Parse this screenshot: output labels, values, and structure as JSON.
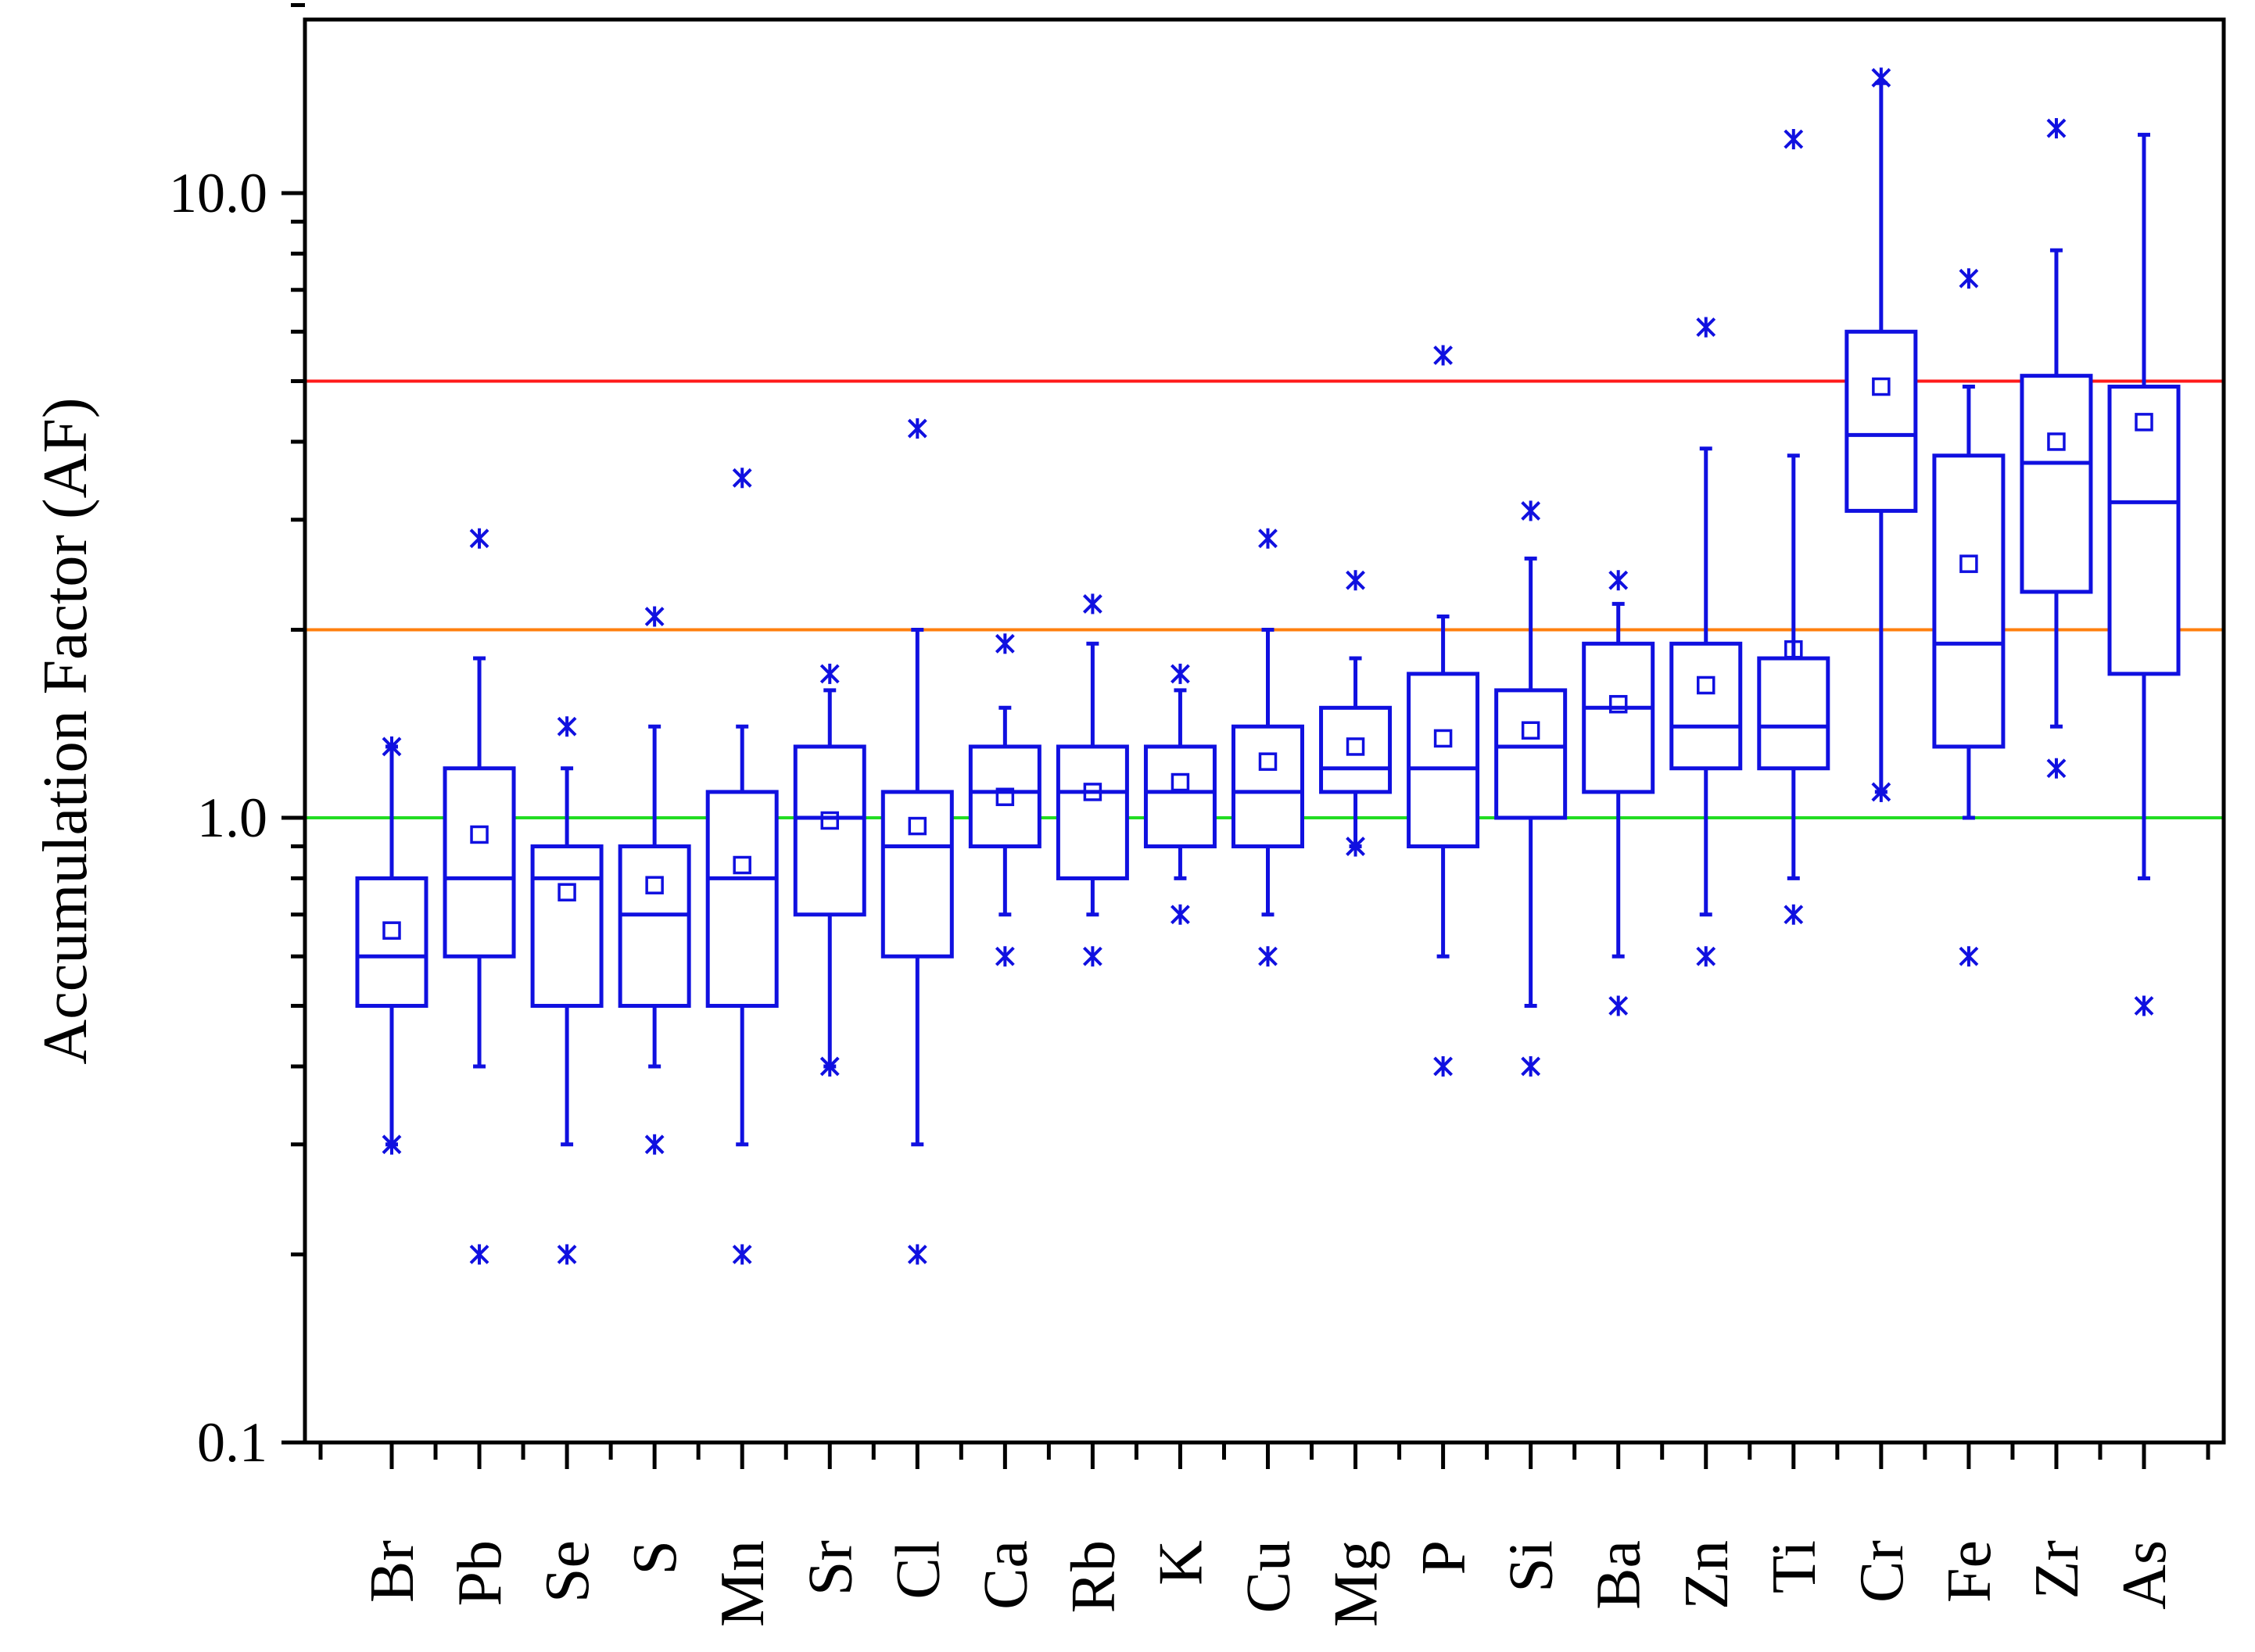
{
  "chart_data": {
    "type": "box",
    "title": "",
    "xlabel": "",
    "ylabel": "Accumulation Factor (AF)",
    "yscale": "log",
    "ylim": [
      0.1,
      20
    ],
    "yticks": [
      0.1,
      1.0,
      10.0
    ],
    "ytick_labels": [
      "0.1",
      "1.0",
      "10.0"
    ],
    "grid": false,
    "box_color": "#1010e0",
    "reference_lines": [
      {
        "value": 1,
        "color": "#22dd22"
      },
      {
        "value": 2,
        "color": "#ff7f0e"
      },
      {
        "value": 5,
        "color": "#ff1a1a"
      }
    ],
    "categories": [
      "Br",
      "Pb",
      "Se",
      "S",
      "Mn",
      "Sr",
      "Cl",
      "Ca",
      "Rb",
      "K",
      "Cu",
      "Mg",
      "P",
      "Si",
      "Ba",
      "Zn",
      "Ti",
      "Cr",
      "Fe",
      "Zr",
      "As"
    ],
    "boxes": [
      {
        "label": "Br",
        "whisker_low": 0.3,
        "q1": 0.5,
        "median": 0.6,
        "q3": 0.8,
        "whisker_high": 1.3,
        "mean": 0.66,
        "outliers": [
          0.3,
          1.3
        ]
      },
      {
        "label": "Pb",
        "whisker_low": 0.4,
        "q1": 0.6,
        "median": 0.8,
        "q3": 1.2,
        "whisker_high": 1.8,
        "mean": 0.94,
        "outliers": [
          0.2,
          2.8
        ]
      },
      {
        "label": "Se",
        "whisker_low": 0.3,
        "q1": 0.5,
        "median": 0.8,
        "q3": 0.9,
        "whisker_high": 1.2,
        "mean": 0.76,
        "outliers": [
          0.2,
          1.4
        ]
      },
      {
        "label": "S",
        "whisker_low": 0.4,
        "q1": 0.5,
        "median": 0.7,
        "q3": 0.9,
        "whisker_high": 1.4,
        "mean": 0.78,
        "outliers": [
          0.3,
          2.1
        ]
      },
      {
        "label": "Mn",
        "whisker_low": 0.3,
        "q1": 0.5,
        "median": 0.8,
        "q3": 1.1,
        "whisker_high": 1.4,
        "mean": 0.84,
        "outliers": [
          0.2,
          3.5
        ]
      },
      {
        "label": "Sr",
        "whisker_low": 0.4,
        "q1": 0.7,
        "median": 1.0,
        "q3": 1.3,
        "whisker_high": 1.6,
        "mean": 0.99,
        "outliers": [
          0.4,
          1.7
        ]
      },
      {
        "label": "Cl",
        "whisker_low": 0.3,
        "q1": 0.6,
        "median": 0.9,
        "q3": 1.1,
        "whisker_high": 2.0,
        "mean": 0.97,
        "outliers": [
          0.2,
          4.2
        ]
      },
      {
        "label": "Ca",
        "whisker_low": 0.7,
        "q1": 0.9,
        "median": 1.1,
        "q3": 1.3,
        "whisker_high": 1.5,
        "mean": 1.08,
        "outliers": [
          0.6,
          1.9
        ]
      },
      {
        "label": "Rb",
        "whisker_low": 0.7,
        "q1": 0.8,
        "median": 1.1,
        "q3": 1.3,
        "whisker_high": 1.9,
        "mean": 1.1,
        "outliers": [
          0.6,
          2.2
        ]
      },
      {
        "label": "K",
        "whisker_low": 0.8,
        "q1": 0.9,
        "median": 1.1,
        "q3": 1.3,
        "whisker_high": 1.6,
        "mean": 1.14,
        "outliers": [
          0.7,
          1.7
        ]
      },
      {
        "label": "Cu",
        "whisker_low": 0.7,
        "q1": 0.9,
        "median": 1.1,
        "q3": 1.4,
        "whisker_high": 2.0,
        "mean": 1.23,
        "outliers": [
          0.6,
          2.8
        ]
      },
      {
        "label": "Mg",
        "whisker_low": 0.9,
        "q1": 1.1,
        "median": 1.2,
        "q3": 1.5,
        "whisker_high": 1.8,
        "mean": 1.3,
        "outliers": [
          0.9,
          2.4
        ]
      },
      {
        "label": "P",
        "whisker_low": 0.6,
        "q1": 0.9,
        "median": 1.2,
        "q3": 1.7,
        "whisker_high": 2.1,
        "mean": 1.34,
        "outliers": [
          0.4,
          5.5
        ]
      },
      {
        "label": "Si",
        "whisker_low": 0.5,
        "q1": 1.0,
        "median": 1.3,
        "q3": 1.6,
        "whisker_high": 2.6,
        "mean": 1.38,
        "outliers": [
          0.4,
          3.1
        ]
      },
      {
        "label": "Ba",
        "whisker_low": 0.6,
        "q1": 1.1,
        "median": 1.5,
        "q3": 1.9,
        "whisker_high": 2.2,
        "mean": 1.52,
        "outliers": [
          0.5,
          2.4
        ]
      },
      {
        "label": "Zn",
        "whisker_low": 0.7,
        "q1": 1.2,
        "median": 1.4,
        "q3": 1.9,
        "whisker_high": 3.9,
        "mean": 1.63,
        "outliers": [
          0.6,
          6.1
        ]
      },
      {
        "label": "Ti",
        "whisker_low": 0.8,
        "q1": 1.2,
        "median": 1.4,
        "q3": 1.8,
        "whisker_high": 3.8,
        "mean": 1.86,
        "outliers": [
          0.7,
          12.2
        ]
      },
      {
        "label": "Cr",
        "whisker_low": 1.1,
        "q1": 3.1,
        "median": 4.1,
        "q3": 6.0,
        "whisker_high": 15.0,
        "mean": 4.9,
        "outliers": [
          1.1,
          15.3
        ]
      },
      {
        "label": "Fe",
        "whisker_low": 1.0,
        "q1": 1.3,
        "median": 1.9,
        "q3": 3.8,
        "whisker_high": 4.9,
        "mean": 2.55,
        "outliers": [
          0.6,
          7.3
        ]
      },
      {
        "label": "Zr",
        "whisker_low": 1.4,
        "q1": 2.3,
        "median": 3.7,
        "q3": 5.1,
        "whisker_high": 8.1,
        "mean": 4.0,
        "outliers": [
          1.2,
          12.7
        ]
      },
      {
        "label": "As",
        "whisker_low": 0.8,
        "q1": 1.7,
        "median": 3.2,
        "q3": 4.9,
        "whisker_high": 12.4,
        "mean": 4.3,
        "outliers": [
          0.5
        ]
      }
    ]
  }
}
